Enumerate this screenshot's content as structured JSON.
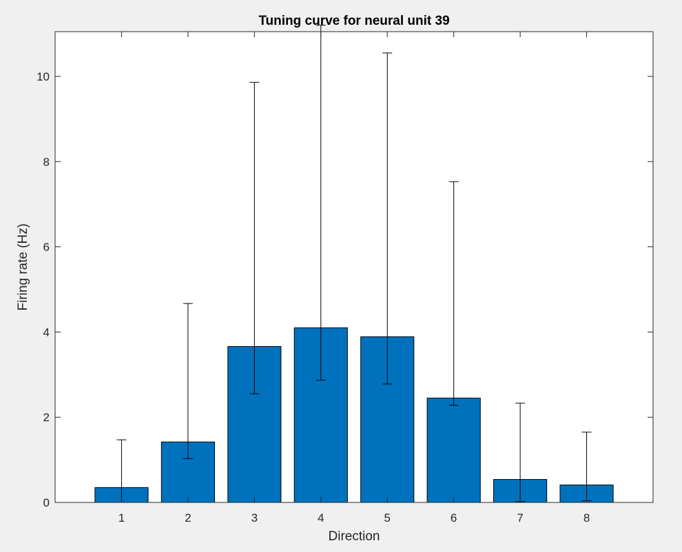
{
  "chart_data": {
    "type": "bar",
    "title": "Tuning curve for neural unit 39",
    "xlabel": "Direction",
    "ylabel": "Firing rate (Hz)",
    "categories": [
      "1",
      "2",
      "3",
      "4",
      "5",
      "6",
      "7",
      "8"
    ],
    "x": [
      1,
      2,
      3,
      4,
      5,
      6,
      7,
      8
    ],
    "values": [
      0.35,
      1.42,
      3.66,
      4.1,
      3.89,
      2.45,
      0.54,
      0.41
    ],
    "error_lower": [
      0.0,
      1.03,
      2.55,
      2.87,
      2.78,
      2.28,
      0.02,
      0.04
    ],
    "error_upper": [
      1.47,
      4.67,
      9.86,
      11.2,
      10.55,
      7.53,
      2.33,
      1.65
    ],
    "xlim": [
      0,
      9
    ],
    "ylim": [
      0,
      11.05
    ],
    "yticks": [
      0,
      2,
      4,
      6,
      8,
      10
    ],
    "grid": false,
    "bar_color": "#0072bd",
    "edge_color": "#000000",
    "errorbar_color": "#000000",
    "axes_background": "#ffffff",
    "figure_background": "#f0f0f0"
  }
}
